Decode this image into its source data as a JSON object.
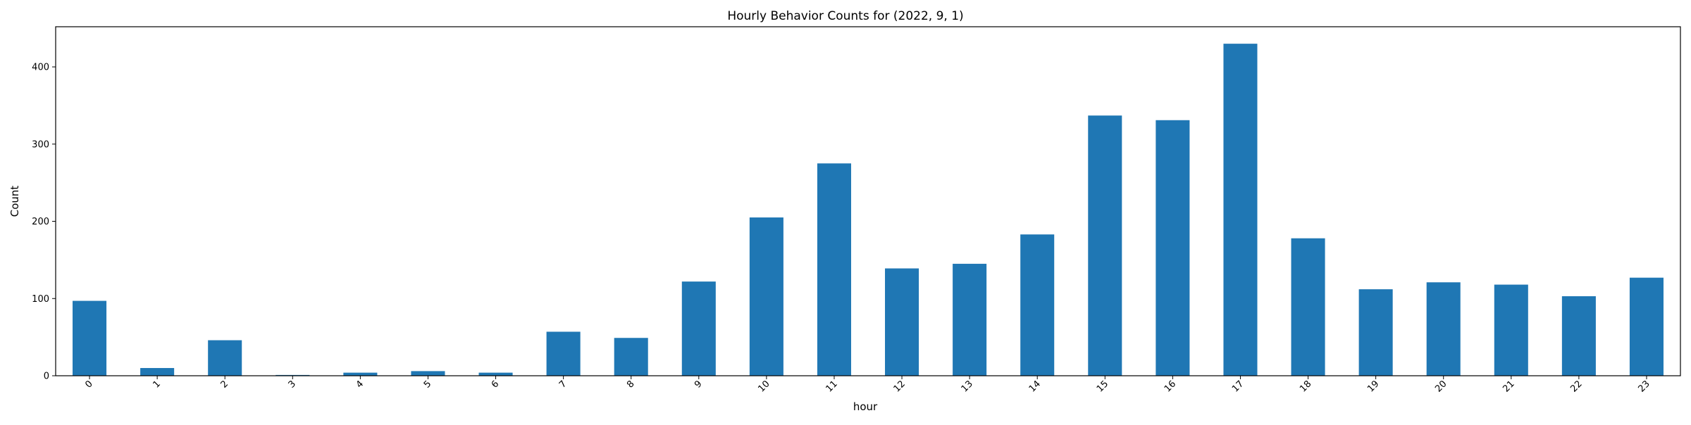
{
  "chart_data": {
    "type": "bar",
    "title": "Hourly Behavior Counts for (2022, 9, 1)",
    "xlabel": "hour",
    "ylabel": "Count",
    "categories": [
      "0",
      "1",
      "2",
      "3",
      "4",
      "5",
      "6",
      "7",
      "8",
      "9",
      "10",
      "11",
      "12",
      "13",
      "14",
      "15",
      "16",
      "17",
      "18",
      "19",
      "20",
      "21",
      "22",
      "23"
    ],
    "values": [
      97,
      10,
      46,
      1,
      4,
      6,
      4,
      57,
      49,
      122,
      205,
      275,
      139,
      145,
      183,
      337,
      331,
      430,
      178,
      112,
      121,
      118,
      103,
      127
    ],
    "ylim": [
      0,
      452
    ],
    "yticks": [
      0,
      100,
      200,
      300,
      400
    ],
    "bar_color": "#1f77b4",
    "grid": false,
    "legend": "none"
  }
}
